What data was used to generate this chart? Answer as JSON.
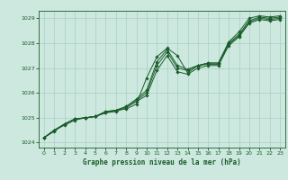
{
  "xlabel": "Graphe pression niveau de la mer (hPa)",
  "ylabel": "",
  "background_color": "#cce8df",
  "grid_color": "#aacfc4",
  "line_color": "#1a5c2a",
  "xlim": [
    -0.5,
    23.5
  ],
  "ylim": [
    1023.8,
    1029.3
  ],
  "yticks": [
    1024,
    1025,
    1026,
    1027,
    1028,
    1029
  ],
  "xticks": [
    0,
    1,
    2,
    3,
    4,
    5,
    6,
    7,
    8,
    9,
    10,
    11,
    12,
    13,
    14,
    15,
    16,
    17,
    18,
    19,
    20,
    21,
    22,
    23
  ],
  "series": [
    [
      1024.2,
      1024.5,
      1024.7,
      1024.9,
      1025.0,
      1025.05,
      1025.2,
      1025.3,
      1025.35,
      1025.55,
      1026.6,
      1027.45,
      1027.8,
      1027.5,
      1026.8,
      1027.1,
      1027.2,
      1027.2,
      1028.05,
      1028.45,
      1029.0,
      1029.1,
      1029.05,
      1029.1
    ],
    [
      1024.2,
      1024.5,
      1024.75,
      1024.95,
      1025.0,
      1025.05,
      1025.25,
      1025.3,
      1025.45,
      1025.75,
      1026.1,
      1027.25,
      1027.75,
      1027.1,
      1026.95,
      1027.1,
      1027.2,
      1027.2,
      1028.0,
      1028.35,
      1028.9,
      1029.05,
      1029.0,
      1029.05
    ],
    [
      1024.2,
      1024.5,
      1024.75,
      1024.95,
      1025.0,
      1025.05,
      1025.25,
      1025.3,
      1025.45,
      1025.7,
      1026.0,
      1027.1,
      1027.65,
      1027.0,
      1026.9,
      1027.1,
      1027.15,
      1027.15,
      1027.95,
      1028.3,
      1028.85,
      1029.0,
      1028.95,
      1029.0
    ],
    [
      1024.2,
      1024.45,
      1024.75,
      1024.95,
      1025.0,
      1025.05,
      1025.2,
      1025.25,
      1025.4,
      1025.65,
      1025.9,
      1026.9,
      1027.5,
      1026.85,
      1026.75,
      1027.0,
      1027.1,
      1027.1,
      1027.9,
      1028.25,
      1028.8,
      1028.95,
      1028.9,
      1028.95
    ]
  ]
}
